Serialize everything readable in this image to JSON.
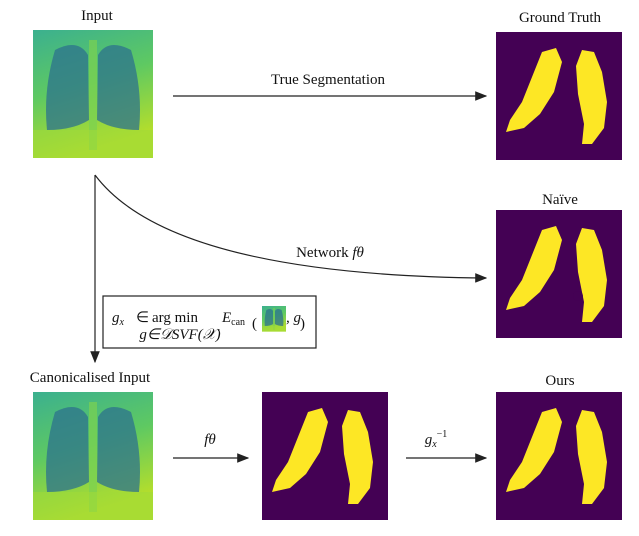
{
  "labels": {
    "input": "Input",
    "ground_truth": "Ground Truth",
    "naive": "Naïve",
    "ours": "Ours",
    "canonicalised_input": "Canonicalised Input"
  },
  "arrows": {
    "true_segmentation": "True Segmentation",
    "network": "Network",
    "network_symbol": "fθ",
    "f_theta": "fθ",
    "g_inverse": "g",
    "g_inverse_sub": "x",
    "g_inverse_sup": "−1"
  },
  "formula": {
    "lhs": "g",
    "lhs_sub": "x",
    "member": "∈",
    "argmin": "arg min",
    "argmin_sub": "g∈𝒟SVF(𝒳)",
    "energy": "E",
    "energy_sub": "can",
    "open": "(",
    "arg": ", g",
    "close": ")"
  }
}
